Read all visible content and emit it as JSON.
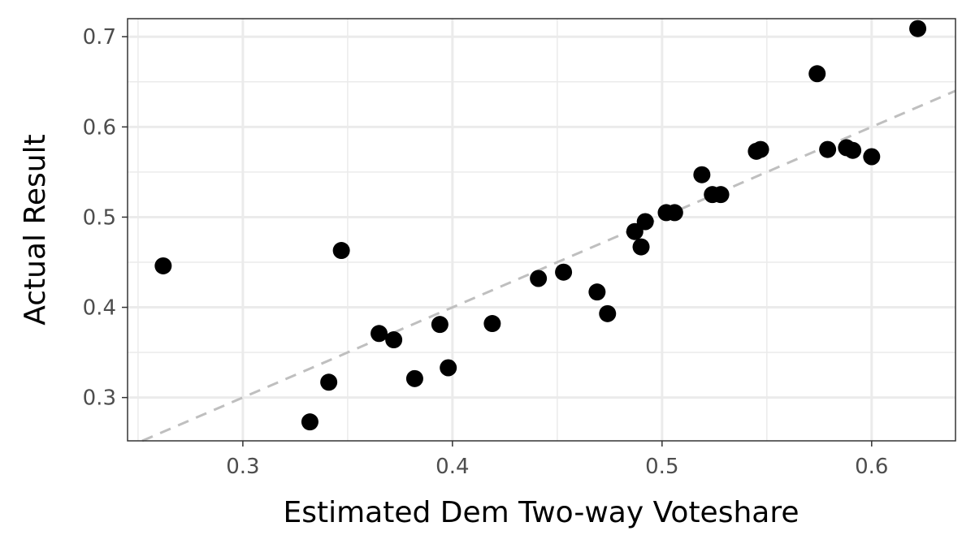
{
  "chart_data": {
    "type": "scatter",
    "title": "",
    "xlabel": "Estimated Dem Two-way Voteshare",
    "ylabel": "Actual Result",
    "xlim": [
      0.245,
      0.64
    ],
    "ylim": [
      0.252,
      0.72
    ],
    "x_ticks": [
      {
        "value": 0.3,
        "label": "0.3"
      },
      {
        "value": 0.4,
        "label": "0.4"
      },
      {
        "value": 0.5,
        "label": "0.5"
      },
      {
        "value": 0.6,
        "label": "0.6"
      }
    ],
    "y_ticks": [
      {
        "value": 0.3,
        "label": "0.3"
      },
      {
        "value": 0.4,
        "label": "0.4"
      },
      {
        "value": 0.5,
        "label": "0.5"
      },
      {
        "value": 0.6,
        "label": "0.6"
      },
      {
        "value": 0.7,
        "label": "0.7"
      }
    ],
    "x_minor": [
      0.25,
      0.35,
      0.45,
      0.55
    ],
    "y_minor": [
      0.35,
      0.45,
      0.55,
      0.65
    ],
    "grid": true,
    "reference_line": {
      "type": "y=x",
      "style": "dashed",
      "color": "#bfbfbf"
    },
    "point_color": "#000000",
    "points": [
      {
        "x": 0.262,
        "y": 0.446
      },
      {
        "x": 0.332,
        "y": 0.273
      },
      {
        "x": 0.341,
        "y": 0.317
      },
      {
        "x": 0.347,
        "y": 0.463
      },
      {
        "x": 0.365,
        "y": 0.371
      },
      {
        "x": 0.372,
        "y": 0.364
      },
      {
        "x": 0.382,
        "y": 0.321
      },
      {
        "x": 0.394,
        "y": 0.381
      },
      {
        "x": 0.398,
        "y": 0.333
      },
      {
        "x": 0.419,
        "y": 0.382
      },
      {
        "x": 0.441,
        "y": 0.432
      },
      {
        "x": 0.453,
        "y": 0.439
      },
      {
        "x": 0.469,
        "y": 0.417
      },
      {
        "x": 0.474,
        "y": 0.393
      },
      {
        "x": 0.487,
        "y": 0.484
      },
      {
        "x": 0.49,
        "y": 0.467
      },
      {
        "x": 0.492,
        "y": 0.495
      },
      {
        "x": 0.502,
        "y": 0.505
      },
      {
        "x": 0.506,
        "y": 0.505
      },
      {
        "x": 0.519,
        "y": 0.547
      },
      {
        "x": 0.524,
        "y": 0.525
      },
      {
        "x": 0.528,
        "y": 0.525
      },
      {
        "x": 0.545,
        "y": 0.573
      },
      {
        "x": 0.547,
        "y": 0.575
      },
      {
        "x": 0.574,
        "y": 0.659
      },
      {
        "x": 0.579,
        "y": 0.575
      },
      {
        "x": 0.588,
        "y": 0.577
      },
      {
        "x": 0.591,
        "y": 0.574
      },
      {
        "x": 0.6,
        "y": 0.567
      },
      {
        "x": 0.622,
        "y": 0.709
      }
    ]
  }
}
